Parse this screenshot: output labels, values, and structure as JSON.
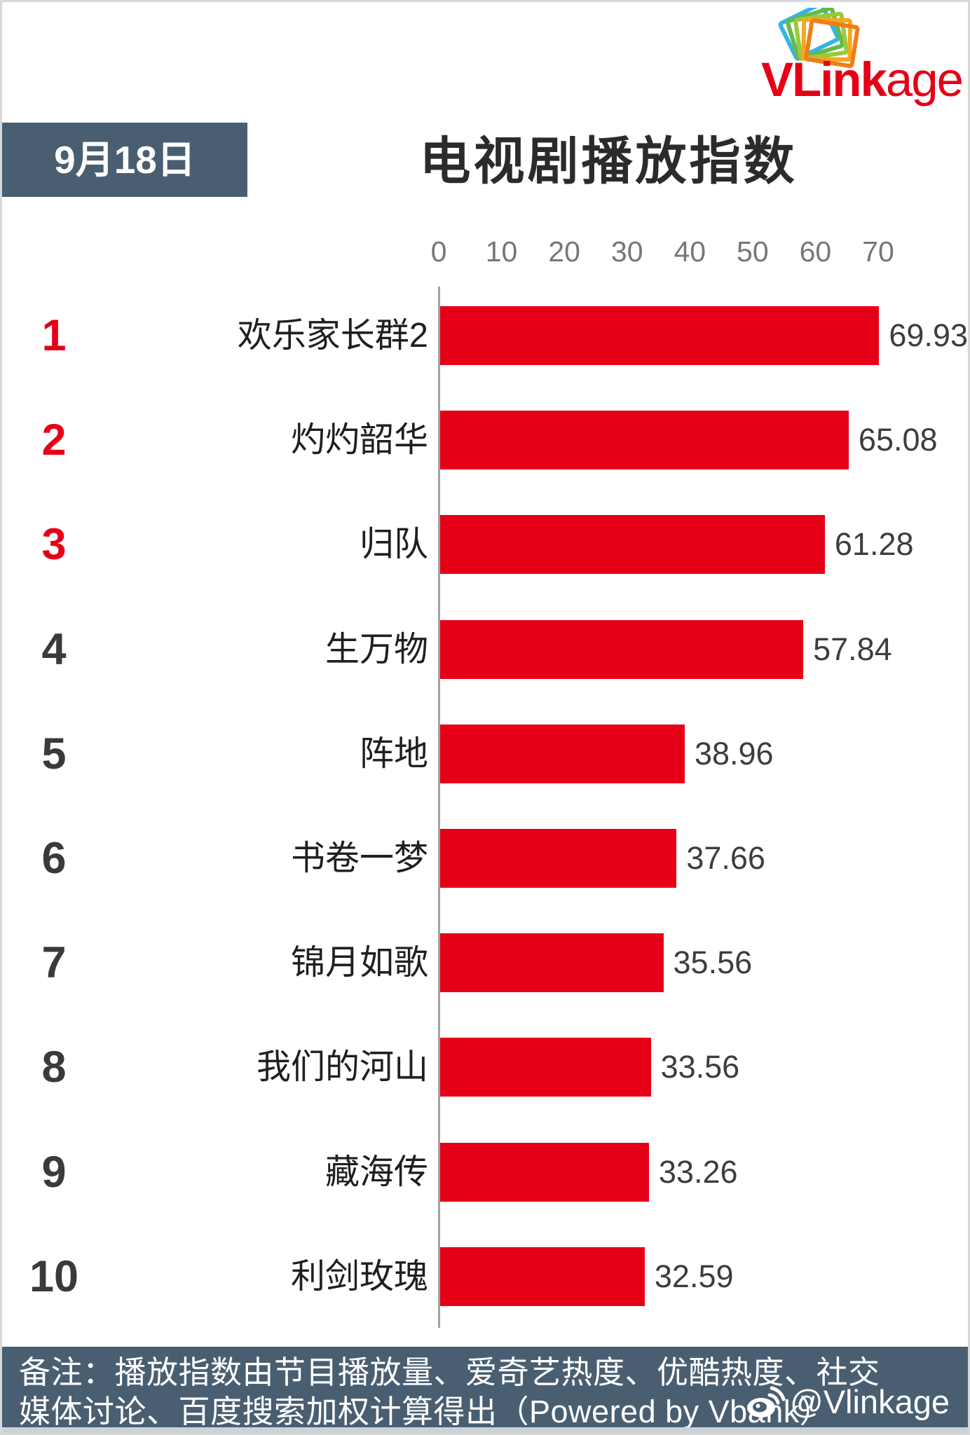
{
  "logo": {
    "text_bold": "VLink",
    "text_light": "age"
  },
  "header": {
    "date": "9月18日",
    "title": "电视剧播放指数"
  },
  "chart_data": {
    "type": "bar",
    "orientation": "horizontal",
    "title": "电视剧播放指数",
    "date": "9月18日",
    "xlim": [
      0,
      70
    ],
    "x_ticks": [
      0,
      10,
      20,
      30,
      40,
      50,
      60,
      70
    ],
    "grid": false,
    "bar_color": "#e60017",
    "categories": [
      "欢乐家长群2",
      "灼灼韶华",
      "归队",
      "生万物",
      "阵地",
      "书卷一梦",
      "锦月如歌",
      "我们的河山",
      "藏海传",
      "利剑玫瑰"
    ],
    "values": [
      69.93,
      65.08,
      61.28,
      57.84,
      38.96,
      37.66,
      35.56,
      33.56,
      33.26,
      32.59
    ],
    "items": [
      {
        "rank": 1,
        "name": "欢乐家长群2",
        "value": 69.93
      },
      {
        "rank": 2,
        "name": "灼灼韶华",
        "value": 65.08
      },
      {
        "rank": 3,
        "name": "归队",
        "value": 61.28
      },
      {
        "rank": 4,
        "name": "生万物",
        "value": 57.84
      },
      {
        "rank": 5,
        "name": "阵地",
        "value": 38.96
      },
      {
        "rank": 6,
        "name": "书卷一梦",
        "value": 37.66
      },
      {
        "rank": 7,
        "name": "锦月如歌",
        "value": 35.56
      },
      {
        "rank": 8,
        "name": "我们的河山",
        "value": 33.56
      },
      {
        "rank": 9,
        "name": "藏海传",
        "value": 33.26
      },
      {
        "rank": 10,
        "name": "利剑玫瑰",
        "value": 32.59
      }
    ]
  },
  "footer": {
    "note": "备注：播放指数由节目播放量、爱奇艺热度、优酷热度、社交媒体讨论、百度搜索加权计算得出（Powered by Vbank）",
    "weibo_handle": "@Vlinkage"
  },
  "colors": {
    "accent_red": "#e60017",
    "rank_dark": "#3a3a3a",
    "slate": "#4a5e71",
    "tick_gray": "#76777b"
  }
}
